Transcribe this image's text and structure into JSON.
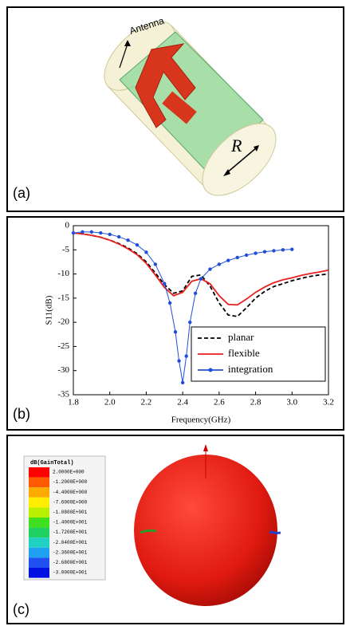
{
  "panel_a": {
    "label": "(a)",
    "antenna_label": "Antenna",
    "radius_label": "R"
  },
  "chart_data": {
    "type": "line",
    "label": "(b)",
    "xlabel": "Frequency(GHz)",
    "ylabel": "S11(dB)",
    "xlim": [
      1.8,
      3.2
    ],
    "xticks": [
      1.8,
      {
        "value": 2,
        "label": "2.0"
      },
      2.2,
      2.4,
      2.6,
      2.8,
      {
        "value": 3,
        "label": "3.0"
      },
      3.2
    ],
    "ylim": [
      -35,
      0
    ],
    "yticks": [
      0,
      -5,
      -10,
      -15,
      -20,
      -25,
      -30,
      -35
    ],
    "series": [
      {
        "name": "planar",
        "color": "#000000",
        "dash": true,
        "marker": false,
        "x": [
          1.8,
          1.85,
          1.9,
          1.95,
          2.0,
          2.05,
          2.1,
          2.15,
          2.2,
          2.25,
          2.3,
          2.35,
          2.4,
          2.45,
          2.5,
          2.55,
          2.6,
          2.65,
          2.7,
          2.75,
          2.8,
          2.85,
          2.9,
          2.95,
          3.0,
          3.05,
          3.1,
          3.15,
          3.2
        ],
        "values": [
          -1.5,
          -1.7,
          -2,
          -2.4,
          -3,
          -3.7,
          -4.6,
          -5.8,
          -7.5,
          -9.8,
          -12.2,
          -14,
          -13.5,
          -10.5,
          -10.2,
          -12.5,
          -16,
          -18.5,
          -18.8,
          -17,
          -15,
          -13.6,
          -12.6,
          -12,
          -11.4,
          -10.9,
          -10.5,
          -10.2,
          -10
        ]
      },
      {
        "name": "flexible",
        "color": "#e8211e",
        "dash": false,
        "marker": false,
        "x": [
          1.8,
          1.85,
          1.9,
          1.95,
          2.0,
          2.05,
          2.1,
          2.15,
          2.2,
          2.25,
          2.3,
          2.35,
          2.4,
          2.45,
          2.5,
          2.55,
          2.6,
          2.65,
          2.7,
          2.75,
          2.8,
          2.85,
          2.9,
          2.95,
          3.0,
          3.05,
          3.1,
          3.15,
          3.2
        ],
        "values": [
          -1.5,
          -1.7,
          -2,
          -2.4,
          -3,
          -3.8,
          -4.8,
          -6,
          -7.8,
          -10.2,
          -12.8,
          -14.5,
          -13.8,
          -11.5,
          -11,
          -12,
          -14.5,
          -16.3,
          -16.4,
          -15.2,
          -13.8,
          -12.7,
          -11.8,
          -11.2,
          -10.8,
          -10.3,
          -9.9,
          -9.6,
          -9.2
        ]
      },
      {
        "name": "integration",
        "color": "#1f4fd8",
        "dash": false,
        "marker": true,
        "x": [
          1.8,
          1.85,
          1.9,
          1.95,
          2.0,
          2.05,
          2.1,
          2.15,
          2.2,
          2.25,
          2.3,
          2.33,
          2.36,
          2.38,
          2.4,
          2.42,
          2.44,
          2.47,
          2.5,
          2.55,
          2.6,
          2.65,
          2.7,
          2.75,
          2.8,
          2.85,
          2.9,
          2.95,
          3.0
        ],
        "values": [
          -1.5,
          -1.3,
          -1.3,
          -1.5,
          -1.8,
          -2.3,
          -3,
          -4,
          -5.5,
          -8,
          -12,
          -16,
          -22,
          -28,
          -32.5,
          -27,
          -20,
          -14,
          -11,
          -9,
          -8,
          -7.2,
          -6.6,
          -6.1,
          -5.7,
          -5.4,
          -5.2,
          -5,
          -4.9
        ]
      }
    ]
  },
  "panel_c": {
    "label": "(c)",
    "legend_title": "dB(GainTotal)",
    "legend_labels": [
      "2.0000E+000",
      "-1.2000E+000",
      "-4.4000E+000",
      "-7.6000E+000",
      "-1.0800E+001",
      "-1.4000E+001",
      "-1.7200E+001",
      "-2.0400E+001",
      "-2.3600E+001",
      "-2.6800E+001",
      "-3.0000E+001"
    ],
    "legend_colors": [
      "#ff0000",
      "#ff5a00",
      "#ffaa00",
      "#ffee00",
      "#b8f000",
      "#40e020",
      "#20d060",
      "#20d0c0",
      "#20a0f0",
      "#2050f0",
      "#0010e0"
    ]
  }
}
